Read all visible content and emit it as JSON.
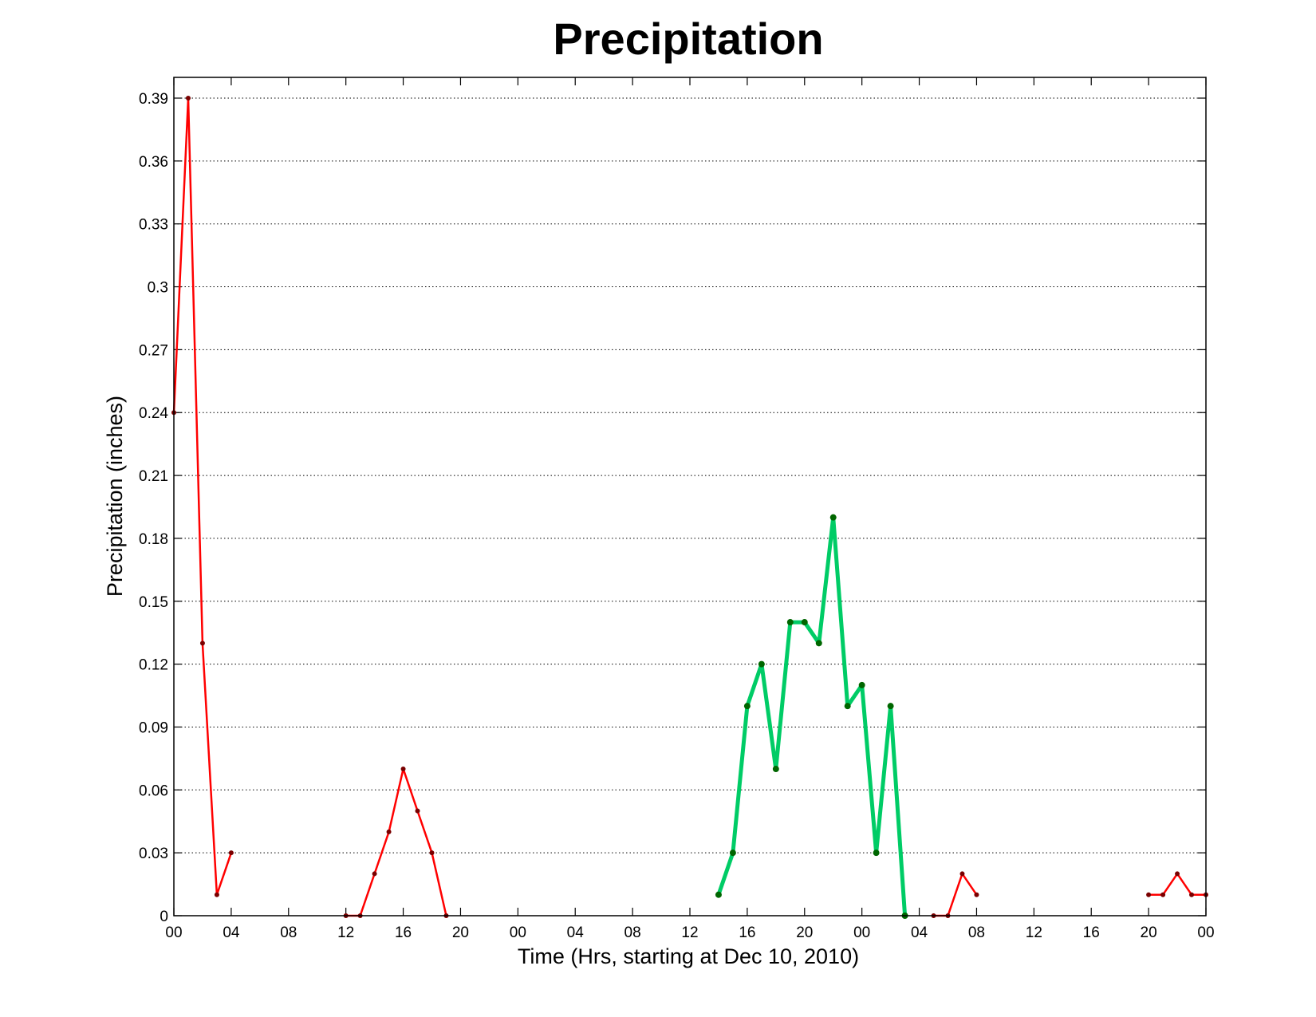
{
  "chart_data": {
    "type": "line",
    "title": "Precipitation",
    "xlabel": "Time (Hrs, starting at Dec 10, 2010)",
    "ylabel": "Precipitation (inches)",
    "x_unit": "hours",
    "xlim": [
      0,
      72
    ],
    "ylim": [
      0,
      0.4
    ],
    "x_ticks": [
      0,
      4,
      8,
      12,
      16,
      20,
      24,
      28,
      32,
      36,
      40,
      44,
      48,
      52,
      56,
      60,
      64,
      68,
      72
    ],
    "x_tick_labels": [
      "00",
      "04",
      "08",
      "12",
      "16",
      "20",
      "00",
      "04",
      "08",
      "12",
      "16",
      "20",
      "00",
      "04",
      "08",
      "12",
      "16",
      "20",
      "00"
    ],
    "y_ticks": [
      0,
      0.03,
      0.06,
      0.09,
      0.12,
      0.15,
      0.18,
      0.21,
      0.24,
      0.27,
      0.3,
      0.33,
      0.36,
      0.39
    ],
    "y_tick_labels": [
      "0",
      "0.03",
      "0.06",
      "0.09",
      "0.12",
      "0.15",
      "0.18",
      "0.21",
      "0.24",
      "0.27",
      "0.3",
      "0.33",
      "0.36",
      "0.39"
    ],
    "grid": "horizontal dotted",
    "series": [
      {
        "color": "#ff0000",
        "marker_color": "#7a0000",
        "x": [
          0,
          1,
          2,
          3,
          4
        ],
        "values": [
          0.24,
          0.39,
          0.13,
          0.01,
          0.03
        ]
      },
      {
        "color": "#ff0000",
        "marker_color": "#7a0000",
        "x": [
          12,
          13,
          14,
          15,
          16,
          17,
          18,
          19
        ],
        "values": [
          0,
          0,
          0.02,
          0.04,
          0.07,
          0.05,
          0.03,
          0
        ]
      },
      {
        "color": "#00cc66",
        "marker_color": "#006600",
        "x": [
          38,
          39,
          40,
          41,
          42,
          43,
          44,
          45,
          46,
          47,
          48,
          49,
          50,
          51
        ],
        "values": [
          0.01,
          0.03,
          0.1,
          0.12,
          0.07,
          0.14,
          0.14,
          0.13,
          0.19,
          0.1,
          0.11,
          0.03,
          0.1,
          0
        ]
      },
      {
        "color": "#ff0000",
        "marker_color": "#7a0000",
        "x": [
          53,
          54,
          55,
          56
        ],
        "values": [
          0,
          0,
          0.02,
          0.01
        ]
      },
      {
        "color": "#ff0000",
        "marker_color": "#7a0000",
        "x": [
          68,
          69,
          70,
          71,
          72
        ],
        "values": [
          0.01,
          0.01,
          0.02,
          0.01,
          0.01
        ]
      }
    ]
  }
}
